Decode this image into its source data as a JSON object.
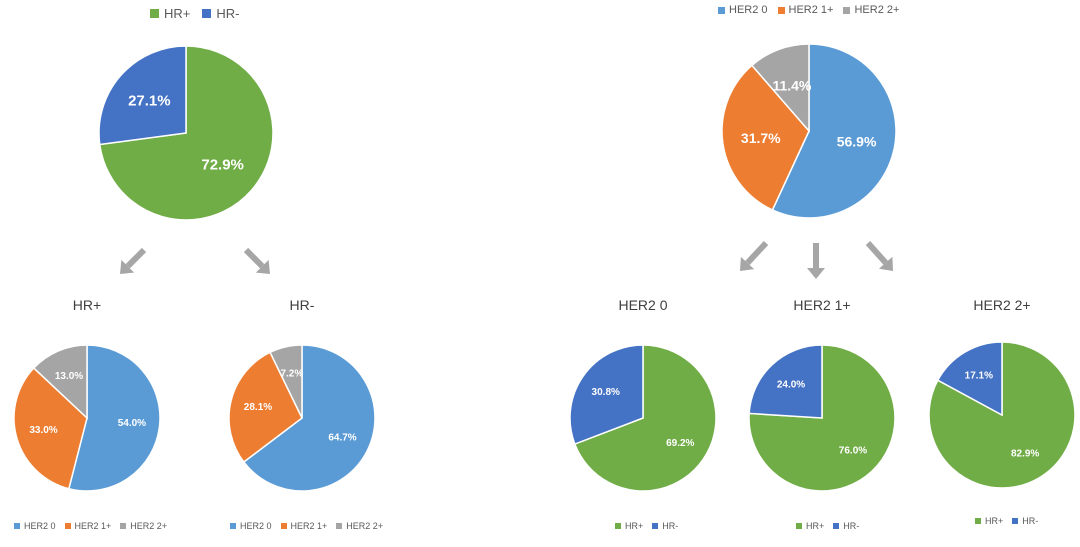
{
  "colors": {
    "hr_pos": "#70AD47",
    "hr_neg": "#4472C4",
    "her2_0": "#5B9BD5",
    "her2_1": "#ED7D31",
    "her2_2": "#A5A5A5",
    "arrow": "#A6A6A6",
    "label": "#FFFFFF"
  },
  "chart_data": [
    {
      "id": "hr-overall",
      "type": "pie",
      "title": "",
      "legend_position": "top",
      "slices": [
        {
          "label": "HR+",
          "value": 72.9,
          "text": "72.9%",
          "color_key": "hr_pos"
        },
        {
          "label": "HR-",
          "value": 27.1,
          "text": "27.1%",
          "color_key": "hr_neg"
        }
      ]
    },
    {
      "id": "her2-overall",
      "type": "pie",
      "title": "",
      "legend_position": "top",
      "slices": [
        {
          "label": "HER2 0",
          "value": 56.9,
          "text": "56.9%",
          "color_key": "her2_0"
        },
        {
          "label": "HER2 1+",
          "value": 31.7,
          "text": "31.7%",
          "color_key": "her2_1"
        },
        {
          "label": "HER2 2+",
          "value": 11.4,
          "text": "11.4%",
          "color_key": "her2_2"
        }
      ]
    },
    {
      "id": "hr-pos-by-her2",
      "type": "pie",
      "title": "HR+",
      "legend_position": "bottom",
      "slices": [
        {
          "label": "HER2 0",
          "value": 54.0,
          "text": "54.0%",
          "color_key": "her2_0"
        },
        {
          "label": "HER2 1+",
          "value": 33.0,
          "text": "33.0%",
          "color_key": "her2_1"
        },
        {
          "label": "HER2 2+",
          "value": 13.0,
          "text": "13.0%",
          "color_key": "her2_2"
        }
      ]
    },
    {
      "id": "hr-neg-by-her2",
      "type": "pie",
      "title": "HR-",
      "legend_position": "bottom",
      "slices": [
        {
          "label": "HER2 0",
          "value": 64.7,
          "text": "64.7%",
          "color_key": "her2_0"
        },
        {
          "label": "HER2 1+",
          "value": 28.1,
          "text": "28.1%",
          "color_key": "her2_1"
        },
        {
          "label": "HER2 2+",
          "value": 7.2,
          "text": "7.2%",
          "color_key": "her2_2"
        }
      ]
    },
    {
      "id": "her2-0-by-hr",
      "type": "pie",
      "title": "HER2 0",
      "legend_position": "bottom",
      "slices": [
        {
          "label": "HR+",
          "value": 69.2,
          "text": "69.2%",
          "color_key": "hr_pos"
        },
        {
          "label": "HR-",
          "value": 30.8,
          "text": "30.8%",
          "color_key": "hr_neg"
        }
      ]
    },
    {
      "id": "her2-1-by-hr",
      "type": "pie",
      "title": "HER2 1+",
      "legend_position": "bottom",
      "slices": [
        {
          "label": "HR+",
          "value": 76.0,
          "text": "76.0%",
          "color_key": "hr_pos"
        },
        {
          "label": "HR-",
          "value": 24.0,
          "text": "24.0%",
          "color_key": "hr_neg"
        }
      ]
    },
    {
      "id": "her2-2-by-hr",
      "type": "pie",
      "title": "HER2 2+",
      "legend_position": "bottom",
      "slices": [
        {
          "label": "HR+",
          "value": 82.9,
          "text": "82.9%",
          "color_key": "hr_pos"
        },
        {
          "label": "HR-",
          "value": 17.1,
          "text": "17.1%",
          "color_key": "hr_neg"
        }
      ]
    }
  ]
}
